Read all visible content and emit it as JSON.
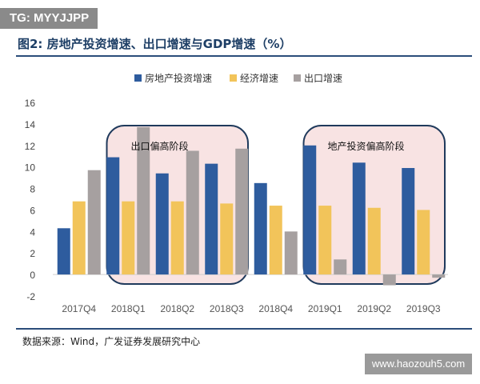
{
  "header": {
    "tag": "TG: MYYJJPP",
    "title": "图2:  房地产投资增速、出口增速与GDP增速（%）"
  },
  "footer": {
    "source": "数据来源：Wind，广发证券发展研究中心",
    "watermark": "www.haozouh5.com"
  },
  "chart_data": {
    "type": "bar",
    "title": "",
    "categories": [
      "2017Q4",
      "2018Q1",
      "2018Q2",
      "2018Q3",
      "2018Q4",
      "2019Q1",
      "2019Q2",
      "2019Q3"
    ],
    "series": [
      {
        "name": "房地产投资增速",
        "color": "#2e5c9e",
        "values": [
          4.3,
          10.9,
          9.4,
          10.3,
          8.5,
          12.0,
          10.4,
          9.9
        ]
      },
      {
        "name": "经济增速",
        "color": "#f2c45a",
        "values": [
          6.8,
          6.8,
          6.8,
          6.6,
          6.4,
          6.4,
          6.2,
          6.0
        ]
      },
      {
        "name": "出口增速",
        "color": "#a6a0a0",
        "values": [
          9.7,
          13.7,
          11.5,
          11.7,
          4.0,
          1.4,
          -1.0,
          -0.3
        ]
      }
    ],
    "yticks": [
      "16",
      "14",
      "12",
      "10",
      "8",
      "6",
      "4",
      "2",
      "0",
      "-2"
    ],
    "ylim": [
      -2,
      16
    ],
    "legend_position": "top",
    "annotations": [
      {
        "text": "出口偏高阶段",
        "from_category": "2018Q1",
        "to_category": "2018Q3"
      },
      {
        "text": "地产投资偏高阶段",
        "from_category": "2019Q1",
        "to_category": "2019Q3"
      }
    ]
  }
}
